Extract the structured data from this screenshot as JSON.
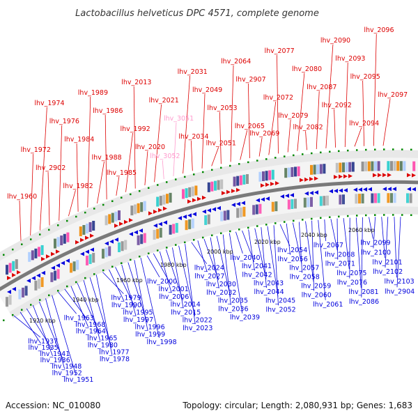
{
  "title": "Lactobacillus helveticus DPC 4571, complete genome",
  "footer": {
    "accession": "Accession: NC_010080",
    "topology": "Topology: circular; Length: 2,080,931 bp; Genes: 1,683"
  },
  "colors": {
    "forward": "#dd0000",
    "forward_light": "#ff9acd",
    "reverse": "#0000dd",
    "backbone": "#777777",
    "dots": "#008800"
  },
  "ticks": [
    "1920 kbp",
    "1940 kbp",
    "1960 kbp",
    "1980 kbp",
    "2000 kbp",
    "2020 kbp",
    "2040 kbp",
    "2060 kbp"
  ],
  "forward_genes": [
    "lhv_1960",
    "lhv_1972",
    "lhv_1974",
    "lhv_2902",
    "lhv_1976",
    "lhv_1982",
    "lhv_1984",
    "lhv_1989",
    "lhv_1988",
    "lhv_1986",
    "lhv_1985",
    "lhv_1992",
    "lhv_2013",
    "lhv_2020",
    "lhv_2021",
    "lhv_3052",
    "lhv_3051",
    "lhv_2031",
    "lhv_2034",
    "lhv_2049",
    "lhv_2051",
    "lhv_2053",
    "lhv_2064",
    "lhv_2065",
    "lhv_2907",
    "lhv_2069",
    "lhv_2072",
    "lhv_2077",
    "lhv_2079",
    "lhv_2080",
    "lhv_2082",
    "lhv_2087",
    "lhv_2090",
    "lhv_2092",
    "lhv_2093",
    "lhv_2094",
    "lhv_2095",
    "lhv_2096",
    "lhv_2097"
  ],
  "reverse_genes": [
    "lhv_1937",
    "lhv_1935",
    "lhv_1941",
    "lhv_1936",
    "lhv_1948",
    "lhv_1952",
    "lhv_1951",
    "lhv_1963",
    "lhv_1968",
    "lhv_1964",
    "lhv_1965",
    "lhv_1980",
    "lhv_1977",
    "lhv_1978",
    "lhv_1979",
    "lhv_1990",
    "lhv_1995",
    "lhv_1997",
    "lhv_1996",
    "lhv_1999",
    "lhv_1998",
    "lhv_2000",
    "lhv_2001",
    "lhv_2006",
    "lhv_2014",
    "lhv_2015",
    "lhv_2022",
    "lhv_2023",
    "lhv_2024",
    "lhv_2027",
    "lhv_2030",
    "lhv_2032",
    "lhv_2035",
    "lhv_2036",
    "lhv_2039",
    "lhv_2040",
    "lhv_2041",
    "lhv_2042",
    "lhv_2043",
    "lhv_2044",
    "lhv_2045",
    "lhv_2052",
    "lhv_2054",
    "lhv_2056",
    "lhv_2057",
    "lhv_2058",
    "lhv_2059",
    "lhv_2060",
    "lhv_2061",
    "lhv_2067",
    "lhv_2068",
    "lhv_2071",
    "lhv_2075",
    "lhv_2076",
    "lhv_2081",
    "lhv_2086",
    "lhv_2099",
    "lhv_2100",
    "lhv_2101",
    "lhv_2102",
    "lhv_2103",
    "lhv_2904"
  ]
}
